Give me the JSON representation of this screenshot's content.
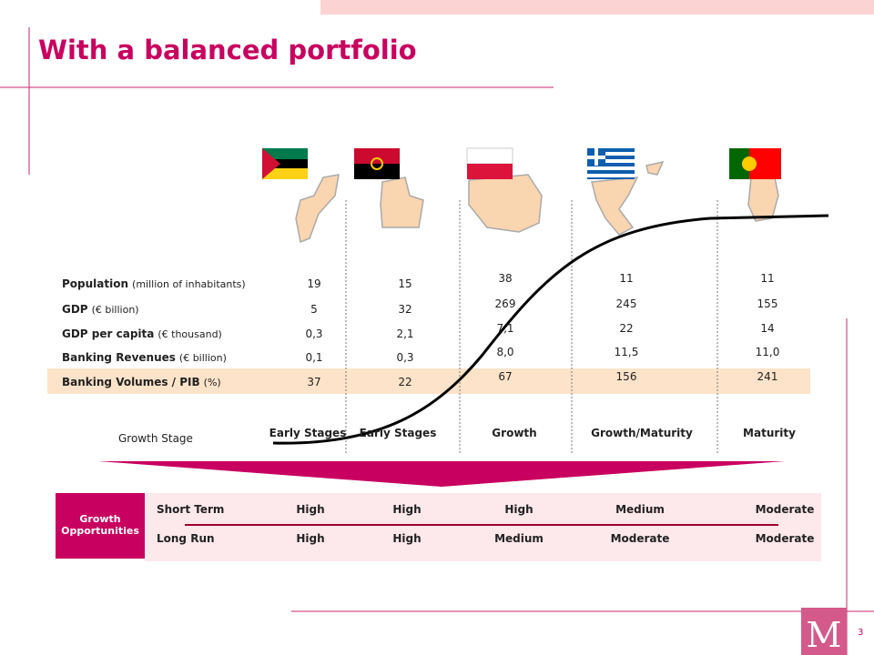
{
  "title": "With a balanced portfolio",
  "rows": [
    {
      "label": "Population",
      "unit": "(million of inhabitants)",
      "values": [
        "19",
        "15",
        "38",
        "11",
        "11"
      ]
    },
    {
      "label": "GDP",
      "unit": "(€ billion)",
      "values": [
        "5",
        "32",
        "269",
        "245",
        "155"
      ]
    },
    {
      "label": "GDP per capita",
      "unit": "(€ thousand)",
      "values": [
        "0,3",
        "2,1",
        "7,1",
        "22",
        "14"
      ]
    },
    {
      "label": "Banking Revenues",
      "unit": "(€ billion)",
      "values": [
        "0,1",
        "0,3",
        "8,0",
        "11,5",
        "11,0"
      ]
    },
    {
      "label": "Banking Volumes / PIB",
      "unit": "(%)",
      "values": [
        "37",
        "22",
        "67",
        "156",
        "241"
      ]
    }
  ],
  "stage_label": "Growth Stage",
  "stages": [
    "Early Stages",
    "Early Stages",
    "Growth",
    "Growth/Maturity",
    "Maturity"
  ],
  "opportunities": {
    "label": "Growth Opportunities",
    "rows": [
      {
        "label": "Short Term",
        "values": [
          "High",
          "High",
          "High",
          "Medium",
          "Moderate"
        ]
      },
      {
        "label": "Long Run",
        "values": [
          "High",
          "High",
          "Medium",
          "Moderate",
          "Moderate"
        ]
      }
    ]
  },
  "logo": "M",
  "page_number": "3"
}
